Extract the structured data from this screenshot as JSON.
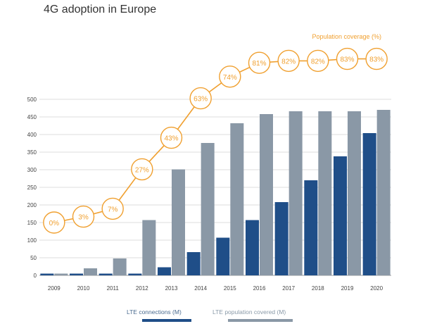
{
  "chart_data": {
    "type": "bar",
    "title": "4G adoption in Europe",
    "categories": [
      "2009",
      "2010",
      "2011",
      "2012",
      "2013",
      "2014",
      "2015",
      "2016",
      "2017",
      "2018",
      "2019",
      "2020"
    ],
    "ylim": [
      0,
      500
    ],
    "yticks": [
      0,
      50,
      100,
      150,
      200,
      250,
      300,
      350,
      400,
      450,
      500
    ],
    "grid": true,
    "series": [
      {
        "name": "LTE connections (M)",
        "color": "#1f4e88",
        "values": [
          5,
          5,
          5,
          5,
          23,
          66,
          107,
          157,
          208,
          270,
          338,
          404
        ]
      },
      {
        "name": "LTE population covered (M)",
        "color": "#8a98a6",
        "values": [
          5,
          20,
          48,
          157,
          301,
          376,
          432,
          458,
          466,
          466,
          466,
          470
        ]
      }
    ],
    "overlay": {
      "type": "line",
      "name": "Population coverage (%)",
      "color": "#f0a030",
      "labels": [
        "0%",
        "3%",
        "7%",
        "27%",
        "43%",
        "63%",
        "74%",
        "81%",
        "82%",
        "82%",
        "83%",
        "83%"
      ],
      "values": [
        0,
        3,
        7,
        27,
        43,
        63,
        74,
        81,
        82,
        82,
        83,
        83
      ]
    },
    "legend_position": "bottom"
  }
}
